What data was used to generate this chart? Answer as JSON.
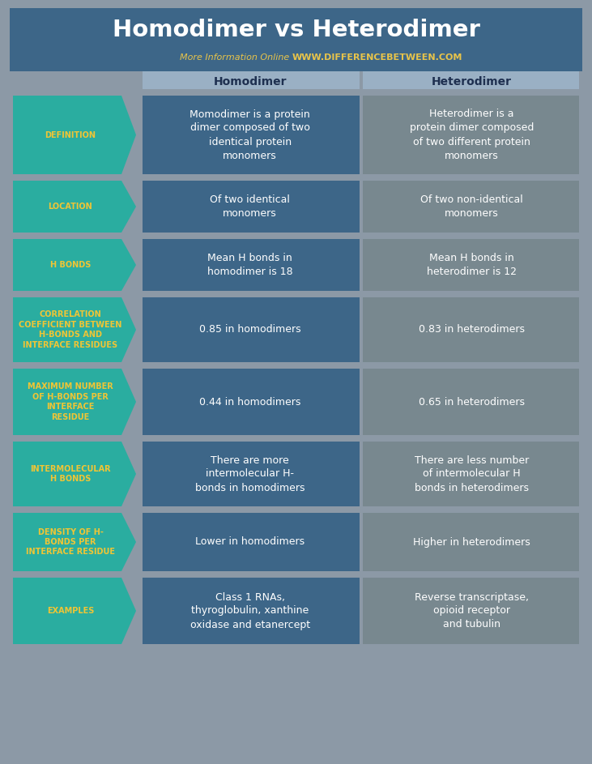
{
  "title": "Homodimer vs Heterodimer",
  "subtitle_plain": "More Information Online ",
  "subtitle_url": "WWW.DIFFERENCEBETWEEN.COM",
  "col1_header": "Homodimer",
  "col2_header": "Heterodimer",
  "rows": [
    {
      "label": "DEFINITION",
      "col1": "Momodimer is a protein\ndimer composed of two\nidentical protein\nmonomers",
      "col2": "Heterodimer is a\nprotein dimer composed\nof two different protein\nmonomers"
    },
    {
      "label": "LOCATION",
      "col1": "Of two identical\nmonomers",
      "col2": "Of two non-identical\nmonomers"
    },
    {
      "label": "H BONDS",
      "col1": "Mean H bonds in\nhomodimer is 18",
      "col2": "Mean H bonds in\nheterodimer is 12"
    },
    {
      "label": "CORRELATION\nCOEFFICIENT BETWEEN\nH-BONDS AND\nINTERFACE RESIDUES",
      "col1": "0.85 in homodimers",
      "col2": "0.83 in heterodimers"
    },
    {
      "label": "MAXIMUM NUMBER\nOF H-BONDS PER\nINTERFACE\nRESIDUE",
      "col1": "0.44 in homodimers",
      "col2": "0.65 in heterodimers"
    },
    {
      "label": "INTERMOLECULAR\nH BONDS",
      "col1": "There are more\nintermolecular H-\nbonds in homodimers",
      "col2": "There are less number\nof intermolecular H\nbonds in heterodimers"
    },
    {
      "label": "DENSITY OF H-\nBONDS PER\nINTERFACE RESIDUE",
      "col1": "Lower in homodimers",
      "col2": "Higher in heterodimers"
    },
    {
      "label": "EXAMPLES",
      "col1": "Class 1 RNAs,\nthyroglobulin, xanthine\noxidase and etanercept",
      "col2": "Reverse transcriptase,\nopioid receptor\nand tubulin"
    }
  ],
  "bg_color": "#8c99a6",
  "header_bg": "#3d6688",
  "title_color": "#ffffff",
  "subtitle_plain_color": "#e8c44a",
  "subtitle_url_color": "#e8c44a",
  "col_header_bg": "#9ab0c4",
  "col_header_text": "#1e3050",
  "arrow_bg": "#2aada0",
  "arrow_label_color": "#f0c535",
  "col1_bg": "#3d6688",
  "col2_bg": "#78888f",
  "cell_text_color": "#ffffff"
}
